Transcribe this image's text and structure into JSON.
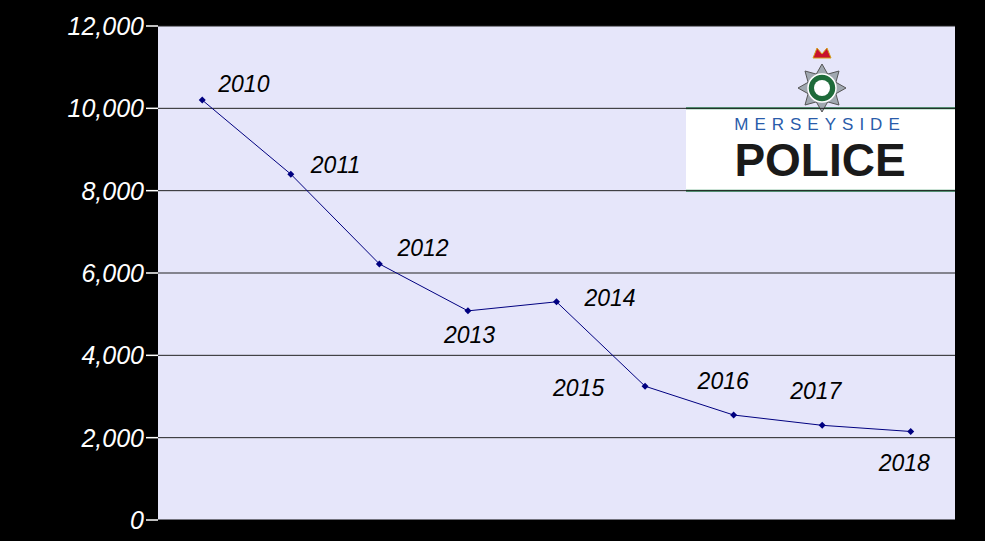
{
  "chart_data": {
    "type": "line",
    "categories": [
      "2010",
      "2011",
      "2012",
      "2013",
      "2014",
      "2015",
      "2016",
      "2017",
      "2018"
    ],
    "values": [
      10200,
      8400,
      6220,
      5080,
      5300,
      3250,
      2550,
      2300,
      2150
    ],
    "color": "#000080",
    "marker": "diamond",
    "ylim": [
      0,
      12000
    ],
    "yticks": [
      0,
      {
        "value": 2000,
        "label": "2,000"
      },
      {
        "value": 4000,
        "label": "4,000"
      },
      {
        "value": 6000,
        "label": "6,000"
      },
      {
        "value": 8000,
        "label": "8,000"
      },
      {
        "value": 10000,
        "label": "10,000"
      },
      {
        "value": 12000,
        "label": "12,000"
      }
    ],
    "grid": true,
    "tick_labels": "y",
    "annotations": [
      "MERSEYSIDE",
      "POLICE"
    ]
  }
}
